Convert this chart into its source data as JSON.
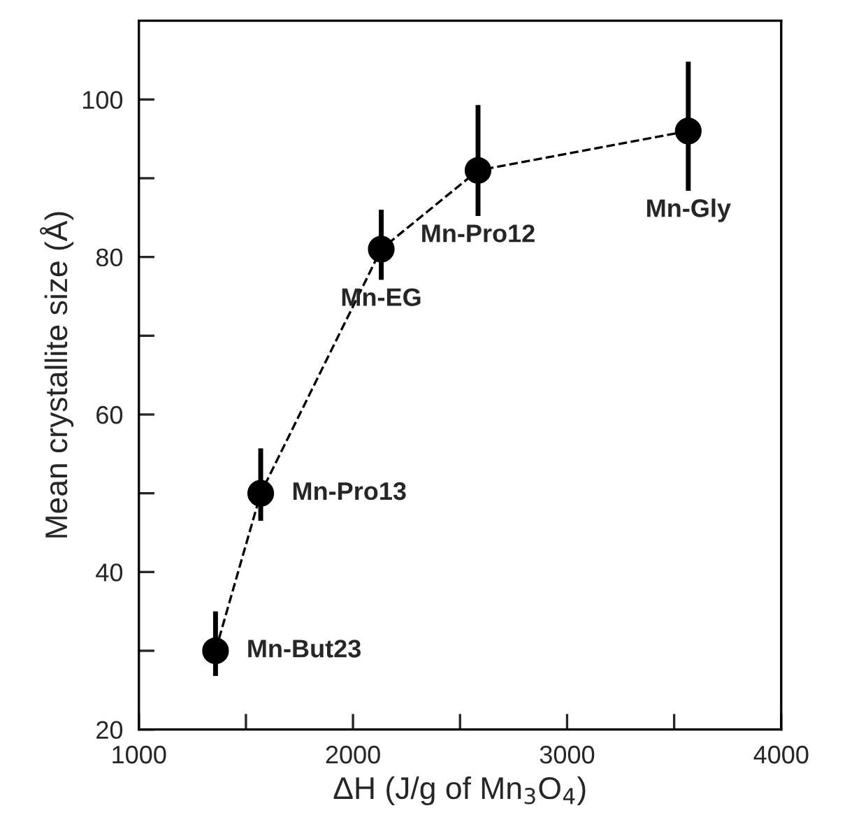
{
  "chart_data": {
    "type": "line",
    "xlabel": "ΔH (J/g of Mn$_{3}$O$_{4}$)",
    "ylabel": "Mean crystallite size (Å)",
    "x": [
      1358,
      1569,
      2132,
      2584,
      3566
    ],
    "series": [
      {
        "color": "#000000",
        "values": [
          30,
          50,
          81,
          91,
          96
        ],
        "errors": [
          [
            26.8,
            35
          ],
          [
            46.5,
            55.7
          ],
          [
            77.1,
            86
          ],
          [
            85.2,
            99.3
          ],
          [
            88.4,
            104.8
          ]
        ]
      }
    ],
    "marker": "circle",
    "line_style": "dashed",
    "grid": false,
    "legend": false,
    "xlim": [
      1000,
      4000
    ],
    "ylim": [
      20,
      110
    ],
    "xticks": [
      1000,
      {
        "value": 1500,
        "label": null
      },
      2000,
      {
        "value": 2500,
        "label": null
      },
      3000,
      {
        "value": 3500,
        "label": null
      },
      4000
    ],
    "yticks": [
      20,
      {
        "value": 30,
        "label": null
      },
      40,
      {
        "value": 50,
        "label": null
      },
      60,
      {
        "value": 70,
        "label": null
      },
      80,
      {
        "value": 90,
        "label": null
      },
      100
    ],
    "annotations": [
      {
        "text": "Mn-But23",
        "x": 1358,
        "y": 30
      },
      {
        "text": "Mn-Pro13",
        "x": 1569,
        "y": 50
      },
      {
        "text": "Mn-EG",
        "x": 2132,
        "y": 81
      },
      {
        "text": "Mn-Pro12",
        "x": 2584,
        "y": 91
      },
      {
        "text": "Mn-Gly",
        "x": 3566,
        "y": 96
      }
    ]
  }
}
